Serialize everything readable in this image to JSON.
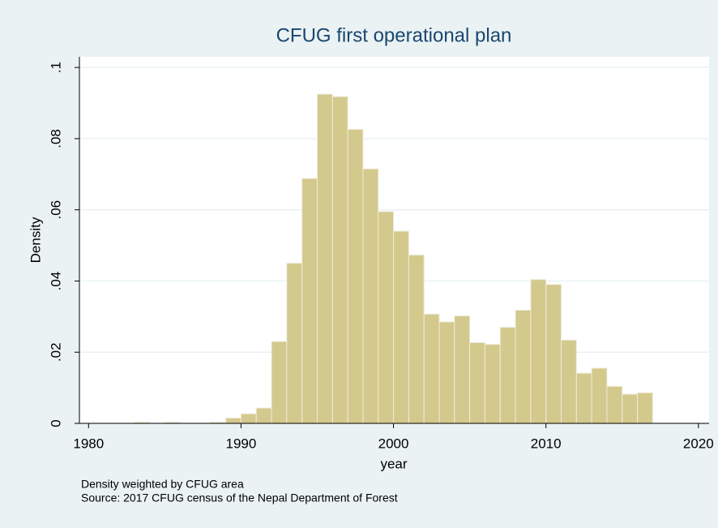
{
  "chart_data": {
    "type": "histogram",
    "title": "CFUG first operational plan",
    "xlabel": "year",
    "ylabel": "Density",
    "notes": [
      "Density weighted by CFUG area",
      "Source: 2017 CFUG census of the Nepal Department of Forest"
    ],
    "bins": [
      1983,
      1984,
      1985,
      1986,
      1987,
      1988,
      1989,
      1990,
      1991,
      1992,
      1993,
      1994,
      1995,
      1996,
      1997,
      1998,
      1999,
      2000,
      2001,
      2002,
      2003,
      2004,
      2005,
      2006,
      2007,
      2008,
      2009,
      2010,
      2011,
      2012,
      2013,
      2014,
      2015,
      2016,
      2017
    ],
    "values": [
      0.0003,
      0,
      0.0003,
      0,
      0,
      0.0003,
      0.0015,
      0.0027,
      0.0043,
      0.023,
      0.045,
      0.0688,
      0.0925,
      0.0918,
      0.0826,
      0.0715,
      0.0595,
      0.054,
      0.0473,
      0.0307,
      0.0285,
      0.0302,
      0.0227,
      0.0222,
      0.027,
      0.0318,
      0.0404,
      0.039,
      0.0234,
      0.0141,
      0.0155,
      0.0104,
      0.0082,
      0.0086
    ],
    "color": "#d3c98c",
    "xlim": [
      1979.4,
      2020.7
    ],
    "ylim": [
      0,
      0.103
    ],
    "xticks": [
      1980,
      1990,
      2000,
      2010,
      2020
    ],
    "yticks": [
      0,
      {
        "value": 0.02,
        "label": ".02"
      },
      {
        "value": 0.04,
        "label": ".04"
      },
      {
        "value": 0.06,
        "label": ".06"
      },
      {
        "value": 0.08,
        "label": ".08"
      },
      {
        "value": 0.1,
        "label": ".1"
      }
    ],
    "grid": true
  }
}
